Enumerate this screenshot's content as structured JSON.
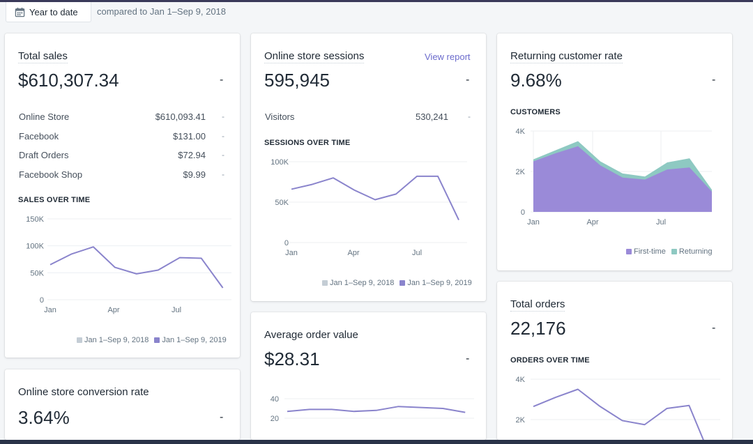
{
  "filters": {
    "date_range_label": "Year to date",
    "comparison_label": "compared to Jan 1–Sep 9, 2018"
  },
  "total_sales": {
    "title": "Total sales",
    "value": "$610,307.34",
    "change": "-",
    "channels": [
      {
        "name": "Online Store",
        "value": "$610,093.41",
        "change": "-"
      },
      {
        "name": "Facebook",
        "value": "$131.00",
        "change": "-"
      },
      {
        "name": "Draft Orders",
        "value": "$72.94",
        "change": "-"
      },
      {
        "name": "Facebook Shop",
        "value": "$9.99",
        "change": "-"
      }
    ],
    "chart_title": "SALES OVER TIME",
    "legend": {
      "previous": "Jan 1–Sep 9, 2018",
      "current": "Jan 1–Sep 9, 2019"
    }
  },
  "sessions": {
    "title": "Online store sessions",
    "link": "View report",
    "value": "595,945",
    "change": "-",
    "visitors_label": "Visitors",
    "visitors_value": "530,241",
    "visitors_change": "-",
    "chart_title": "SESSIONS OVER TIME",
    "legend": {
      "previous": "Jan 1–Sep 9, 2018",
      "current": "Jan 1–Sep 9, 2019"
    }
  },
  "returning": {
    "title": "Returning customer rate",
    "value": "9.68%",
    "change": "-",
    "chart_title": "CUSTOMERS",
    "legend": {
      "first": "First-time",
      "returning": "Returning"
    }
  },
  "total_orders": {
    "title": "Total orders",
    "value": "22,176",
    "change": "-",
    "chart_title": "ORDERS OVER TIME"
  },
  "aov": {
    "title": "Average order value",
    "value": "$28.31",
    "change": "-"
  },
  "conversion": {
    "title": "Online store conversion rate",
    "value": "3.64%",
    "change": "-"
  },
  "colors": {
    "current": "#8a84cc",
    "previous": "#c4cdd5",
    "first_time": "#9a8ad8",
    "returning": "#8ec9c2"
  },
  "chart_data": [
    {
      "type": "line",
      "id": "sales",
      "xlabels": [
        "Jan",
        "Apr",
        "Jul"
      ],
      "yticks": [
        "150K",
        "100K",
        "50K",
        "0"
      ],
      "ylim": [
        0,
        150000
      ],
      "series": [
        {
          "name": "Jan 1–Sep 9, 2019",
          "x": [
            0,
            0.5,
            1,
            1.5,
            2,
            2.5,
            3,
            3.5,
            4
          ],
          "values": [
            65000,
            85000,
            98000,
            60000,
            48000,
            55000,
            78000,
            77000,
            22000
          ]
        }
      ],
      "x_max": 4.2
    },
    {
      "type": "line",
      "id": "sessions",
      "xlabels": [
        "Jan",
        "Apr",
        "Jul"
      ],
      "yticks": [
        "100K",
        "50K",
        "0"
      ],
      "ylim": [
        0,
        100000
      ],
      "series": [
        {
          "name": "Jan 1–Sep 9, 2019",
          "x": [
            0,
            0.5,
            1,
            1.5,
            2,
            2.5,
            3,
            3.5,
            4
          ],
          "values": [
            66000,
            72000,
            80000,
            65000,
            53000,
            60000,
            82000,
            82000,
            28000
          ]
        }
      ],
      "x_max": 4.2
    },
    {
      "type": "area",
      "id": "customers",
      "xlabels": [
        "Jan",
        "Apr",
        "Jul"
      ],
      "yticks": [
        "4K",
        "2K",
        "0"
      ],
      "ylim": [
        0,
        4000
      ],
      "x": [
        0,
        0.5,
        1,
        1.5,
        2,
        2.5,
        3,
        3.5,
        4
      ],
      "series": [
        {
          "name": "First-time",
          "values": [
            2500,
            2900,
            3250,
            2300,
            1700,
            1600,
            2100,
            2200,
            1000
          ]
        },
        {
          "name": "Returning",
          "values": [
            100,
            150,
            250,
            200,
            200,
            150,
            350,
            450,
            100
          ]
        }
      ],
      "x_max": 4
    },
    {
      "type": "line",
      "id": "orders",
      "yticks": [
        "4K",
        "2K"
      ],
      "ylim": [
        0,
        4000
      ],
      "series": [
        {
          "name": "Jan 1–Sep 9, 2019",
          "x": [
            0,
            0.5,
            1,
            1.5,
            2,
            2.5,
            3,
            3.5,
            4
          ],
          "values": [
            2650,
            3100,
            3500,
            2650,
            1950,
            1750,
            2550,
            2700,
            50
          ]
        }
      ],
      "x_max": 4.2
    },
    {
      "type": "line",
      "id": "aov",
      "yticks": [
        "40",
        "20"
      ],
      "ylim": [
        10,
        50
      ],
      "series": [
        {
          "name": "Jan 1–Sep 9, 2019",
          "x": [
            0,
            0.5,
            1,
            1.5,
            2,
            2.5,
            3,
            3.5,
            4
          ],
          "values": [
            27,
            29,
            29,
            27,
            28,
            32,
            31,
            30,
            26
          ]
        }
      ],
      "x_max": 4.2
    }
  ]
}
